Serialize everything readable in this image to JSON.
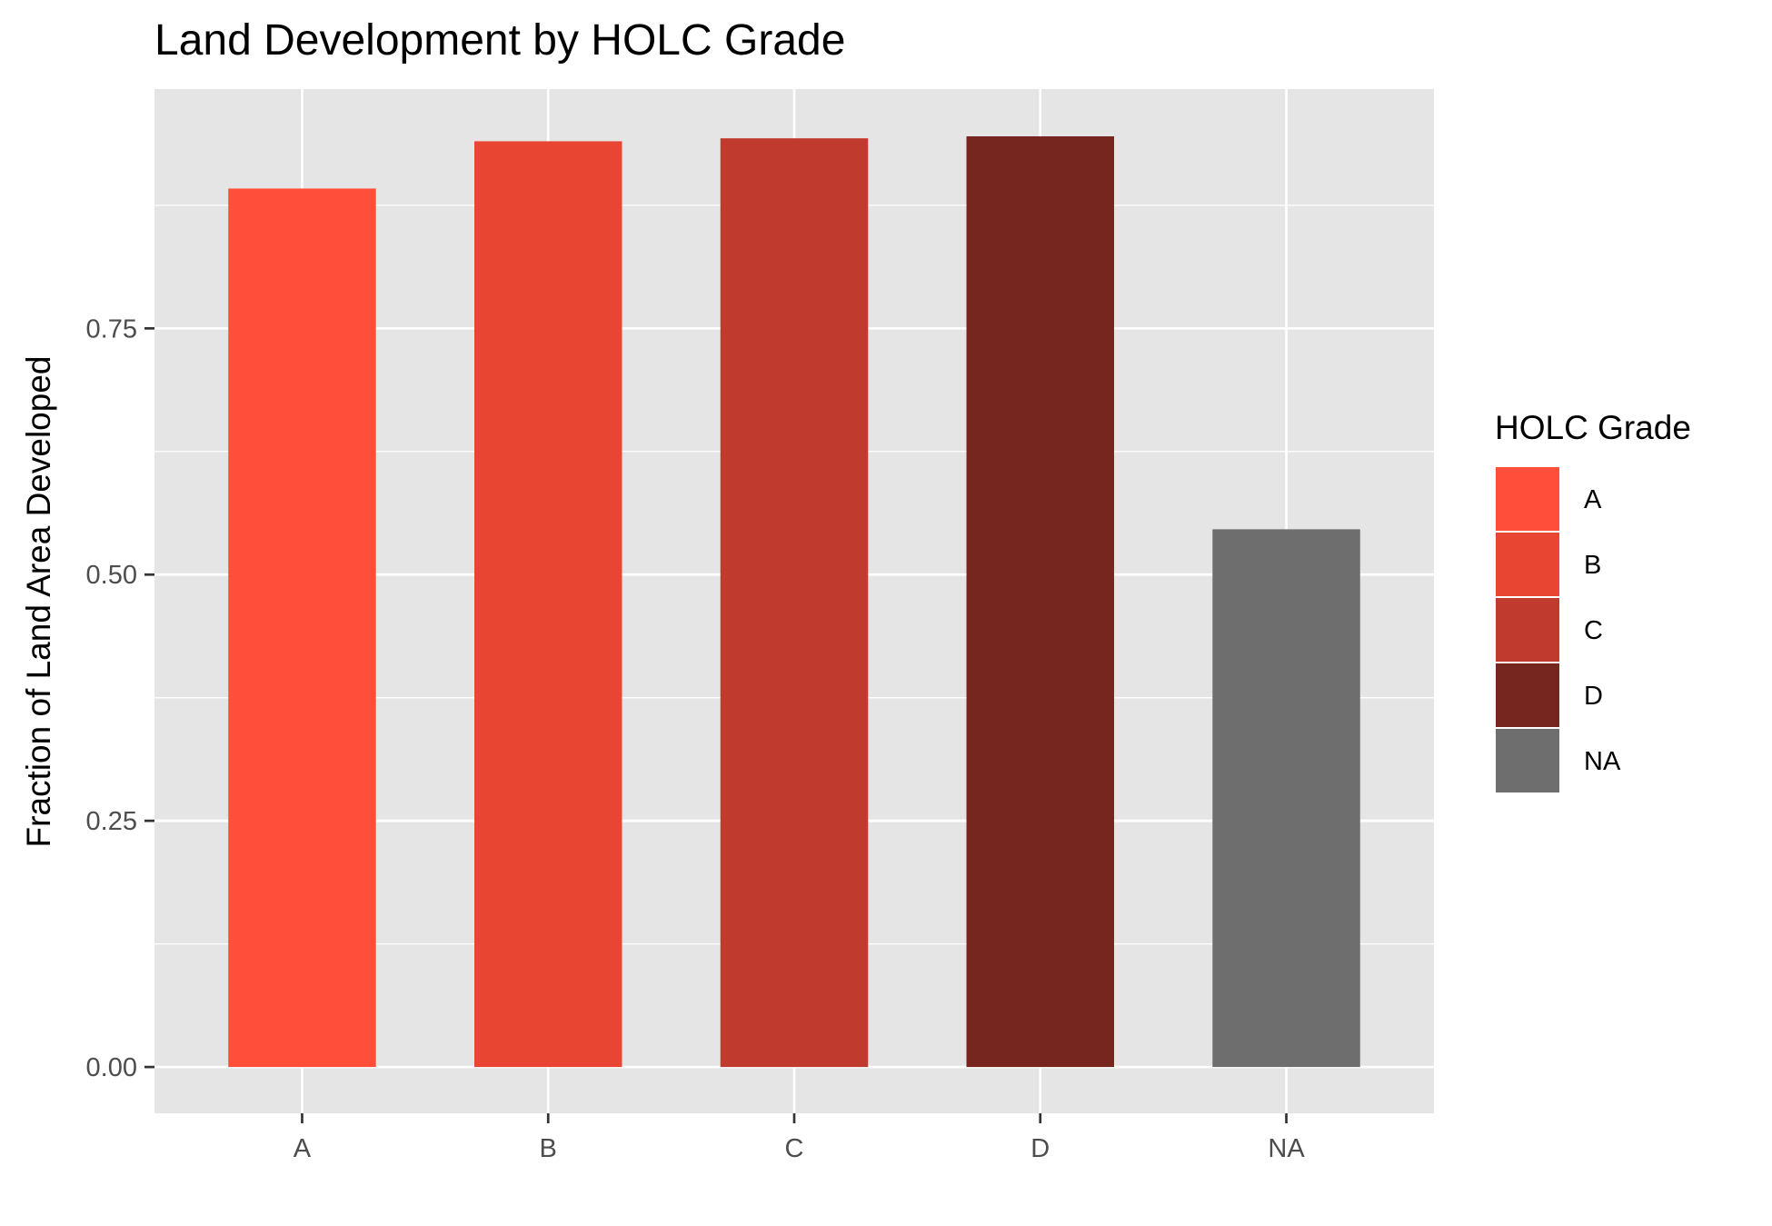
{
  "chart_data": {
    "type": "bar",
    "title": "Land Development by HOLC Grade",
    "xlabel": "",
    "ylabel": "Fraction of Land Area Developed",
    "categories": [
      "A",
      "B",
      "C",
      "D",
      "NA"
    ],
    "values": [
      0.892,
      0.94,
      0.943,
      0.945,
      0.546
    ],
    "colors": [
      "#FF4E3A",
      "#E84533",
      "#C13A2E",
      "#76261E",
      "#6E6E6E"
    ],
    "ylim": [
      -0.047,
      0.993
    ],
    "yticks": [
      0.0,
      0.25,
      0.5,
      0.75
    ],
    "ytick_labels": [
      "0.00",
      "0.25",
      "0.50",
      "0.75"
    ],
    "grid": true,
    "panel_background": "#E5E5E5",
    "legend": {
      "title": "HOLC Grade",
      "position": "right",
      "entries": [
        "A",
        "B",
        "C",
        "D",
        "NA"
      ]
    }
  }
}
